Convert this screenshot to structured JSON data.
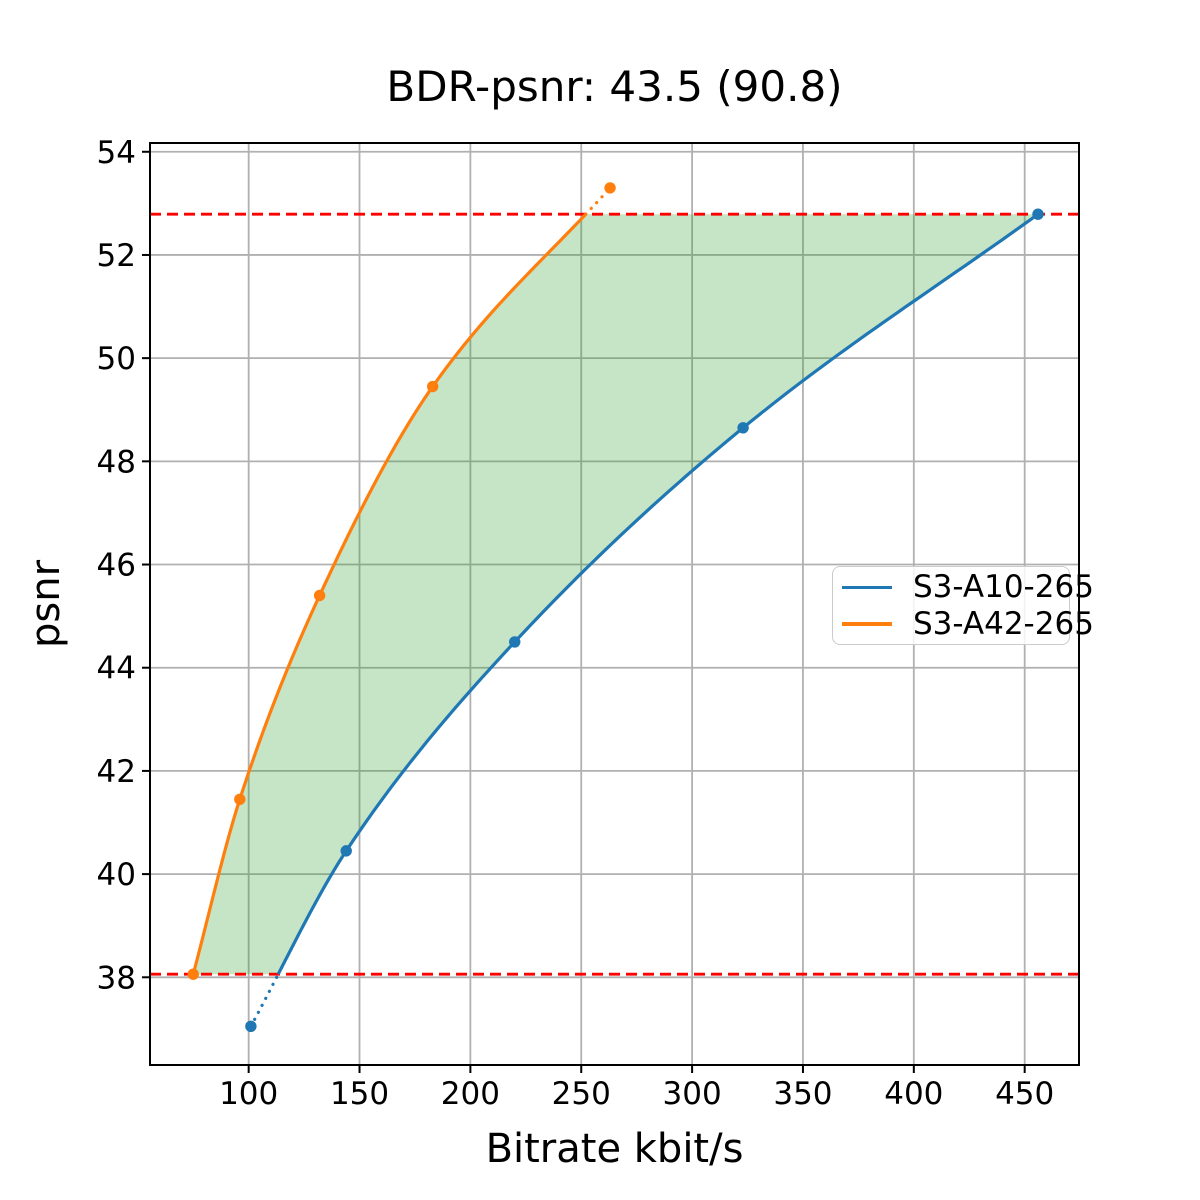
{
  "title": "BDR-psnr: 43.5 (90.8)",
  "chart_data": {
    "type": "line",
    "title": "BDR-psnr: 43.5 (90.8)",
    "xlabel": "Bitrate kbit/s",
    "ylabel": "psnr",
    "xlim": [
      55.5,
      474.5
    ],
    "ylim": [
      36.3,
      54.17
    ],
    "x_ticks": [
      100,
      150,
      200,
      250,
      300,
      350,
      400,
      450
    ],
    "y_ticks": [
      38,
      40,
      42,
      44,
      46,
      48,
      50,
      52,
      54
    ],
    "grid": true,
    "grid_color": "#b0b0b0",
    "legend_position": "center right",
    "series": [
      {
        "name": "S3-A10-265",
        "color": "#1f77b4",
        "marker": "circle",
        "points": [
          [
            101,
            37.05
          ],
          [
            144,
            40.45
          ],
          [
            220,
            44.5
          ],
          [
            323,
            48.65
          ],
          [
            456,
            52.79
          ]
        ]
      },
      {
        "name": "S3-A42-265",
        "color": "#ff7f0e",
        "marker": "circle",
        "points": [
          [
            75,
            38.06
          ],
          [
            96,
            41.45
          ],
          [
            132,
            45.4
          ],
          [
            183,
            49.45
          ],
          [
            263,
            53.3
          ]
        ]
      }
    ],
    "hlines": {
      "values": [
        38.06,
        52.79
      ],
      "color": "#ff0000",
      "style": "dashed",
      "meaning": "common psnr integration bounds; curve portions outside bounds drawn dotted"
    },
    "shaded_region": {
      "between": [
        "S3-A42-265",
        "S3-A10-265"
      ],
      "psnr_range": [
        38.06,
        52.79
      ],
      "color": "#2ca02c",
      "alpha": 0.27
    }
  }
}
